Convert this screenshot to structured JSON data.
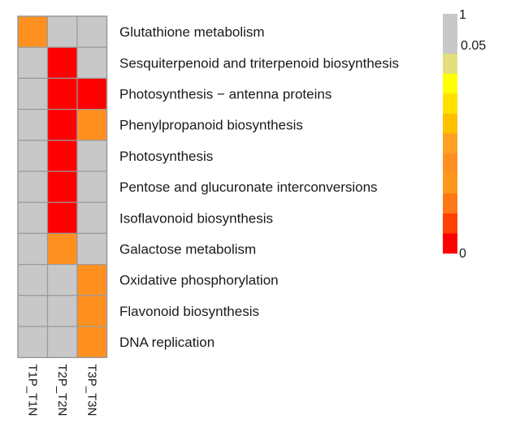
{
  "chart_data": {
    "type": "heatmap",
    "columns": [
      "T1P_T1N",
      "T2P_T2N",
      "T3P_T3N"
    ],
    "rows": [
      "Glutathione metabolism",
      "Sesquiterpenoid and triterpenoid biosynthesis",
      "Photosynthesis − antenna proteins",
      "Phenylpropanoid biosynthesis",
      "Photosynthesis",
      "Pentose and glucuronate interconversions",
      "Isoflavonoid biosynthesis",
      "Galactose metabolism",
      "Oxidative phosphorylation",
      "Flavonoid biosynthesis",
      "DNA replication"
    ],
    "values": [
      [
        0.025,
        1,
        1
      ],
      [
        1,
        0.002,
        1
      ],
      [
        1,
        0.002,
        0.002
      ],
      [
        1,
        0.002,
        0.025
      ],
      [
        1,
        0.002,
        1
      ],
      [
        1,
        0.002,
        1
      ],
      [
        1,
        0.002,
        1
      ],
      [
        1,
        0.025,
        1
      ],
      [
        1,
        1,
        0.025
      ],
      [
        1,
        1,
        0.025
      ],
      [
        1,
        1,
        0.025
      ]
    ],
    "color_key": {
      "labels": [
        "1",
        "0.05",
        "0"
      ],
      "colors_top_to_bottom": [
        "#c8c8c8",
        "#c8c8c8",
        "#e2e07a",
        "#ffff00",
        "#ffe000",
        "#ffc000",
        "#ffa020",
        "#ff9020",
        "#ff9818",
        "#ff7818",
        "#ff4000",
        "#ff0000"
      ],
      "na_color": "#c8c8c8"
    }
  }
}
